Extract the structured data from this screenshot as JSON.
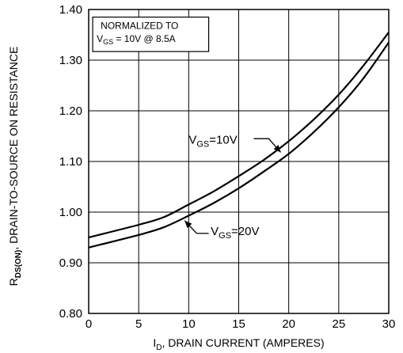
{
  "chart_data": {
    "type": "line",
    "xlabel": {
      "prefix": "I",
      "sub": "D",
      "rest": ", DRAIN CURRENT (AMPERES)"
    },
    "ylabel": {
      "prefix": "R",
      "sub": "DS(ON)",
      "rest": ", DRAIN-TO-SOURCE ON RESISTANCE"
    },
    "xlim": [
      0,
      30
    ],
    "ylim": [
      0.8,
      1.4
    ],
    "xticks": [
      0,
      5,
      10,
      15,
      20,
      25,
      30
    ],
    "xtick_labels": [
      "0",
      "5",
      "10",
      "15",
      "20",
      "25",
      "30"
    ],
    "yticks": [
      0.8,
      0.9,
      1.0,
      1.1,
      1.2,
      1.3,
      1.4
    ],
    "ytick_labels": [
      "0.80",
      "0.90",
      "1.00",
      "1.10",
      "1.20",
      "1.30",
      "1.40"
    ],
    "grid": true,
    "note": {
      "line1": "NORMALIZED TO",
      "line2_prefix": "V",
      "line2_sub": "GS",
      "line2_rest": " = 10V  @  8.5A"
    },
    "series": [
      {
        "name": "VGS=10V",
        "label_prefix": "V",
        "label_sub": "GS",
        "label_rest": "=10V",
        "x": [
          0,
          5,
          7.5,
          10,
          12.5,
          15,
          17.5,
          20,
          22.5,
          25,
          27.5,
          30
        ],
        "y": [
          0.95,
          0.975,
          0.99,
          1.015,
          1.041,
          1.071,
          1.103,
          1.14,
          1.183,
          1.232,
          1.29,
          1.355
        ]
      },
      {
        "name": "VGS=20V",
        "label_prefix": "V",
        "label_sub": "GS",
        "label_rest": "=20V",
        "x": [
          0,
          5,
          7.5,
          10,
          12.5,
          15,
          17.5,
          20,
          22.5,
          25,
          27.5,
          30
        ],
        "y": [
          0.93,
          0.955,
          0.97,
          0.993,
          1.018,
          1.047,
          1.08,
          1.115,
          1.158,
          1.207,
          1.265,
          1.335
        ]
      }
    ]
  }
}
